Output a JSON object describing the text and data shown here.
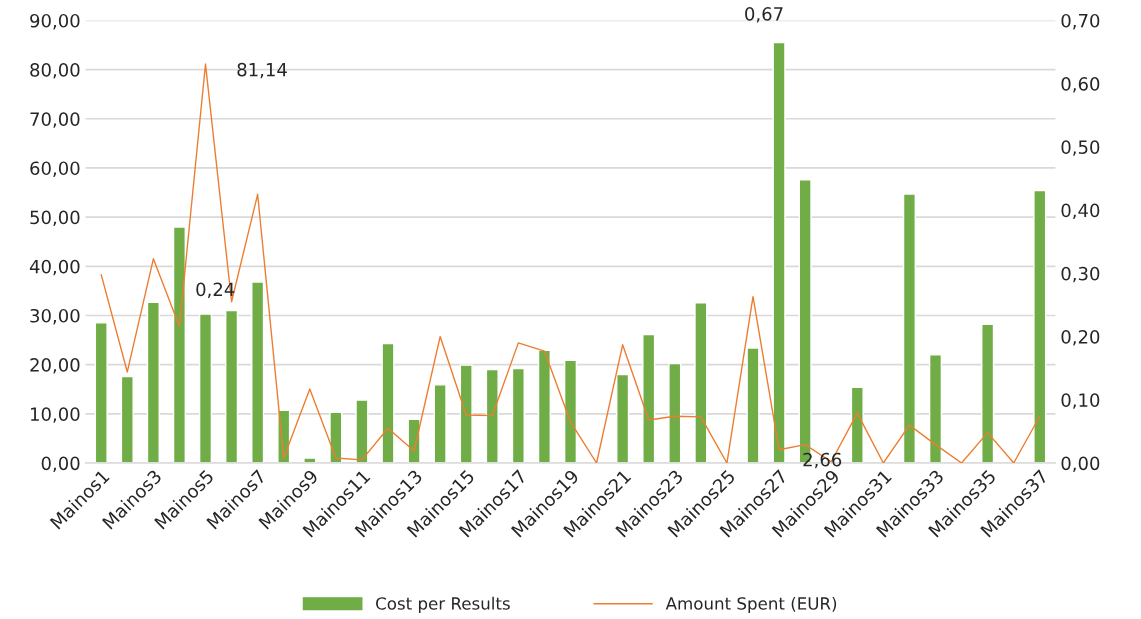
{
  "chart_data": {
    "type": "bar",
    "categories": [
      "Mainos1",
      null,
      "Mainos3",
      null,
      "Mainos5",
      null,
      "Mainos7",
      null,
      "Mainos9",
      null,
      "Mainos11",
      null,
      "Mainos13",
      null,
      "Mainos15",
      null,
      "Mainos17",
      null,
      "Mainos19",
      null,
      "Mainos21",
      null,
      "Mainos23",
      null,
      "Mainos25",
      null,
      "Mainos27",
      null,
      "Mainos29",
      null,
      "Mainos31",
      null,
      "Mainos33",
      null,
      "Mainos35",
      null,
      "Mainos37"
    ],
    "series": [
      {
        "name": "Cost per Results",
        "color": "#70ad47",
        "values": [
          28.5,
          17.6,
          32.7,
          48.0,
          30.3,
          31.0,
          36.8,
          10.7,
          1.0,
          10.3,
          12.8,
          24.3,
          8.9,
          15.9,
          19.9,
          19.0,
          19.2,
          22.9,
          20.9,
          null,
          18.0,
          26.1,
          20.2,
          32.6,
          null,
          23.4,
          85.5,
          57.6,
          null,
          15.4,
          null,
          54.7,
          22.0,
          null,
          28.2,
          null,
          55.4
        ]
      },
      {
        "name": "Amount Spent (EUR)",
        "color": "#ed7d31",
        "type": "line",
        "axis": "y2",
        "values": [
          0.298,
          0.144,
          0.323,
          0.216,
          0.631,
          0.255,
          0.425,
          0.008,
          0.117,
          0.008,
          0.005,
          0.055,
          0.019,
          0.2,
          0.076,
          0.075,
          0.19,
          0.177,
          0.065,
          0,
          0.187,
          0.068,
          0.074,
          0.073,
          0,
          0.263,
          0.021,
          0.029,
          0.002,
          0.079,
          0,
          0.06,
          0.029,
          0,
          0.048,
          0,
          0.074
        ]
      }
    ],
    "ylim": [
      0,
      90
    ],
    "yticks": [
      {
        "value": 0,
        "label": "0,00"
      },
      {
        "value": 10,
        "label": "10,00"
      },
      {
        "value": 20,
        "label": "20,00"
      },
      {
        "value": 30,
        "label": "30,00"
      },
      {
        "value": 40,
        "label": "40,00"
      },
      {
        "value": 50,
        "label": "50,00"
      },
      {
        "value": 60,
        "label": "60,00"
      },
      {
        "value": 70,
        "label": "70,00"
      },
      {
        "value": 80,
        "label": "80,00"
      },
      {
        "value": 90,
        "label": "90,00"
      }
    ],
    "y2lim": [
      0,
      0.7
    ],
    "y2ticks": [
      {
        "value": 0,
        "label": "0,00"
      },
      {
        "value": 0.1,
        "label": "0,10"
      },
      {
        "value": 0.2,
        "label": "0,20"
      },
      {
        "value": 0.3,
        "label": "0,30"
      },
      {
        "value": 0.4,
        "label": "0,40"
      },
      {
        "value": 0.5,
        "label": "0,50"
      },
      {
        "value": 0.6,
        "label": "0,60"
      },
      {
        "value": 0.7,
        "label": "0,70"
      }
    ],
    "annotations": [
      "81,14",
      "0,24",
      "0,67",
      "2,66"
    ],
    "grid": "y",
    "legend": "bottom"
  }
}
